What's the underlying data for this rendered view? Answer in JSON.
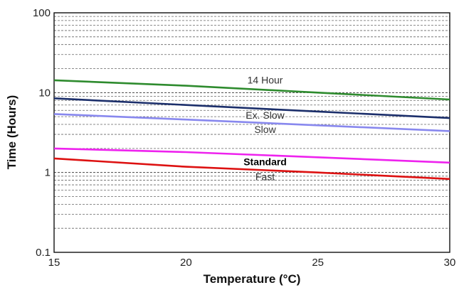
{
  "chart_data": {
    "type": "line",
    "title": "",
    "xlabel": "Temperature (°C)",
    "ylabel": "Time (Hours)",
    "xlim": [
      15,
      30
    ],
    "ylim": [
      0.1,
      100
    ],
    "yscale": "log",
    "grid": true,
    "x_ticks": [
      "15",
      "20",
      "25",
      "30"
    ],
    "y_ticks": [
      "0.1",
      "1",
      "10",
      "100"
    ],
    "series": [
      {
        "name": "14 Hour",
        "color": "#2e8b2e",
        "x": [
          15,
          20,
          25,
          30
        ],
        "y": [
          14.3,
          12.2,
          10.0,
          8.2
        ]
      },
      {
        "name": "Ex. Slow",
        "color": "#1c2f6b",
        "x": [
          15,
          20,
          25,
          30
        ],
        "y": [
          8.5,
          7.0,
          5.8,
          4.8
        ]
      },
      {
        "name": "Slow",
        "color": "#8888ee",
        "x": [
          15,
          20,
          25,
          30
        ],
        "y": [
          5.4,
          4.6,
          3.9,
          3.3
        ]
      },
      {
        "name": "Standard",
        "color": "#ee22ee",
        "x": [
          15,
          20,
          25,
          30
        ],
        "y": [
          2.0,
          1.8,
          1.55,
          1.33
        ]
      },
      {
        "name": "Fast",
        "color": "#dd1111",
        "x": [
          15,
          20,
          25,
          30
        ],
        "y": [
          1.5,
          1.18,
          1.0,
          0.83
        ]
      }
    ]
  }
}
